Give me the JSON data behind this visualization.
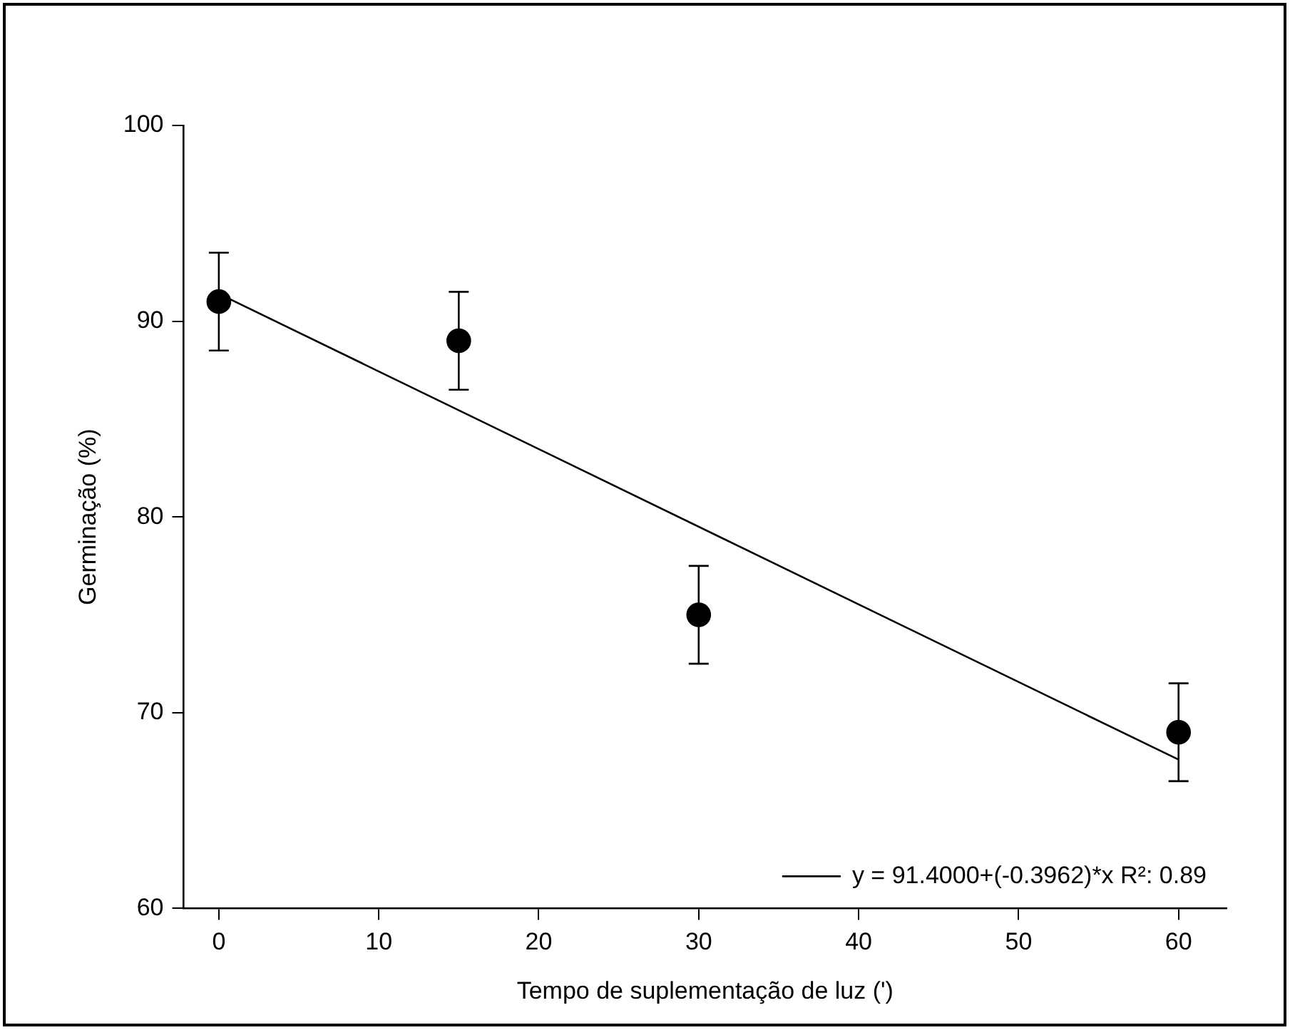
{
  "chart_data": {
    "type": "scatter",
    "xlabel": "Tempo de suplementação de luz (')",
    "ylabel": "Germinação (%)",
    "xlim": [
      -2.2,
      63
    ],
    "xticks": [
      0,
      10,
      20,
      30,
      40,
      50,
      60
    ],
    "ylim": [
      60,
      100
    ],
    "yticks": [
      60,
      70,
      80,
      90,
      100
    ],
    "grid": false,
    "legend": "bottom right",
    "marker": "circle",
    "series": [
      {
        "type": "scatter",
        "color": "#000000",
        "x": [
          0,
          15,
          30,
          60
        ],
        "values": [
          91,
          89,
          75,
          69
        ],
        "errors": [
          2.5,
          2.5,
          2.5,
          2.5
        ]
      },
      {
        "type": "line",
        "name": "y = 91.4000+(-0.3962)*x R²: 0.89",
        "color": "#000000",
        "x": [
          0,
          60
        ],
        "values": [
          91.4,
          67.6
        ],
        "marker": "none",
        "line_style": "solid"
      }
    ]
  }
}
